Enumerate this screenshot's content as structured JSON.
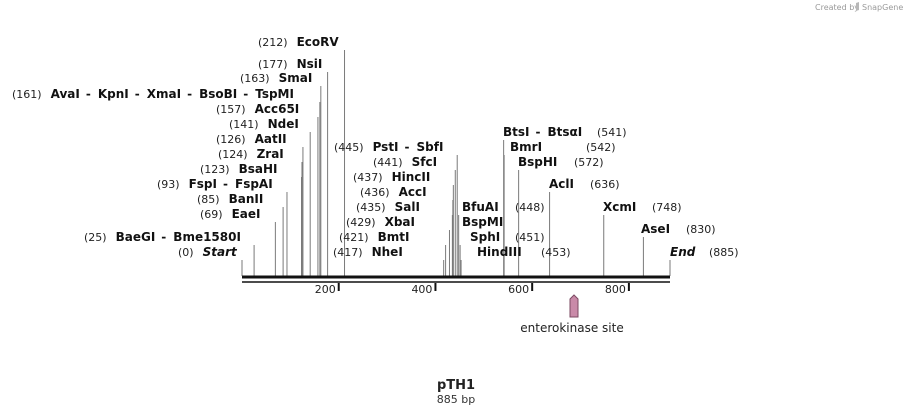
{
  "credit": {
    "prefix": "Created by",
    "brand": "SnapGene"
  },
  "plasmid": {
    "name": "pTH1",
    "length_label": "885 bp",
    "length": 885
  },
  "axis_ticks": [
    "200",
    "400",
    "600",
    "800"
  ],
  "feature": {
    "label": "enterokinase site",
    "color": "#c98aa8"
  },
  "sites": [
    {
      "pos": "(212)",
      "names": [
        "EcoRV"
      ]
    },
    {
      "pos": "(177)",
      "names": [
        "NsiI"
      ]
    },
    {
      "pos": "(163)",
      "names": [
        "SmaI"
      ]
    },
    {
      "pos": "(161)",
      "names": [
        "AvaI",
        "KpnI",
        "XmaI",
        "BsoBI",
        "TspMI"
      ]
    },
    {
      "pos": "(157)",
      "names": [
        "Acc65I"
      ]
    },
    {
      "pos": "(141)",
      "names": [
        "NdeI"
      ]
    },
    {
      "pos": "(126)",
      "names": [
        "AatII"
      ]
    },
    {
      "pos": "(124)",
      "names": [
        "ZraI"
      ]
    },
    {
      "pos": "(123)",
      "names": [
        "BsaHI"
      ]
    },
    {
      "pos": "(93)",
      "names": [
        "FspI",
        "FspAI"
      ]
    },
    {
      "pos": "(85)",
      "names": [
        "BanII"
      ]
    },
    {
      "pos": "(69)",
      "names": [
        "EaeI"
      ]
    },
    {
      "pos": "(25)",
      "names": [
        "BaeGI",
        "Bme1580I"
      ]
    },
    {
      "pos": "(0)",
      "names": [
        "Start"
      ]
    },
    {
      "pos": "(445)",
      "names": [
        "PstI",
        "SbfI"
      ]
    },
    {
      "pos": "(441)",
      "names": [
        "SfcI"
      ]
    },
    {
      "pos": "(437)",
      "names": [
        "HincII"
      ]
    },
    {
      "pos": "(436)",
      "names": [
        "AccI"
      ]
    },
    {
      "pos": "(435)",
      "names": [
        "SalI"
      ]
    },
    {
      "pos": "(429)",
      "names": [
        "XbaI"
      ]
    },
    {
      "pos": "(421)",
      "names": [
        "BmtI"
      ]
    },
    {
      "pos": "(417)",
      "names": [
        "NheI"
      ]
    },
    {
      "pos": "(448)",
      "names": [
        "BfuAI",
        "BspMI"
      ]
    },
    {
      "pos": "(451)",
      "names": [
        "SphI"
      ]
    },
    {
      "pos": "(453)",
      "names": [
        "HindIII"
      ]
    },
    {
      "pos": "(541)",
      "names": [
        "BtsI",
        "BtsαI"
      ]
    },
    {
      "pos": "(542)",
      "names": [
        "BmrI"
      ]
    },
    {
      "pos": "(572)",
      "names": [
        "BspHI"
      ]
    },
    {
      "pos": "(636)",
      "names": [
        "AclI"
      ]
    },
    {
      "pos": "(748)",
      "names": [
        "XcmI"
      ]
    },
    {
      "pos": "(830)",
      "names": [
        "AseI"
      ]
    },
    {
      "pos": "(885)",
      "names": [
        "End"
      ]
    }
  ]
}
